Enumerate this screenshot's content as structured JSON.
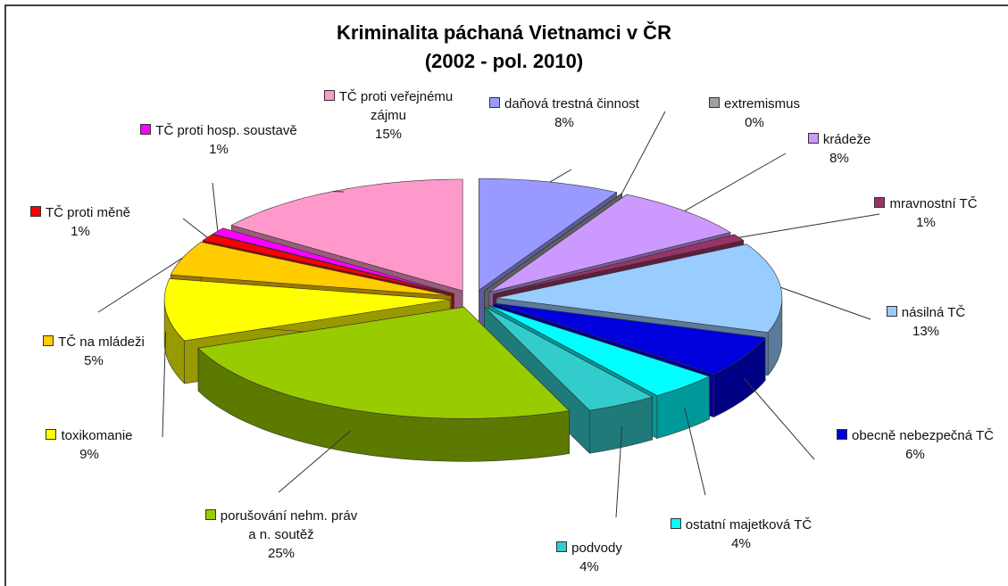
{
  "chart_data": {
    "type": "pie",
    "title": "Kriminalita páchaná Vietnamci v ČR",
    "subtitle": "(2002 - pol. 2010)",
    "categories": [
      "daňová trestná činnost",
      "extremismus",
      "krádeže",
      "mravnostní TČ",
      "násilná TČ",
      "obecně nebezpečná TČ",
      "ostatní majetková TČ",
      "podvody",
      "porušování nehm. práv a n. soutěž",
      "toxikomanie",
      "TČ na mládeži",
      "TČ proti měně",
      "TČ proti hosp. soustavě",
      "TČ proti veřejnému zájmu"
    ],
    "values": [
      8,
      0,
      8,
      1,
      13,
      6,
      4,
      4,
      25,
      9,
      5,
      1,
      1,
      15
    ],
    "value_labels": [
      "8%",
      "0%",
      "8%",
      "1%",
      "13%",
      "6%",
      "4%",
      "4%",
      "25%",
      "9%",
      "5%",
      "1%",
      "1%",
      "15%"
    ],
    "colors": [
      "#9999ff",
      "#a0a0a0",
      "#cc99ff",
      "#993366",
      "#99ccff",
      "#0000dd",
      "#00ffff",
      "#33cccc",
      "#99cc00",
      "#ffff00",
      "#ffcc00",
      "#ff0000",
      "#ff00ff",
      "#ff99cc"
    ]
  }
}
